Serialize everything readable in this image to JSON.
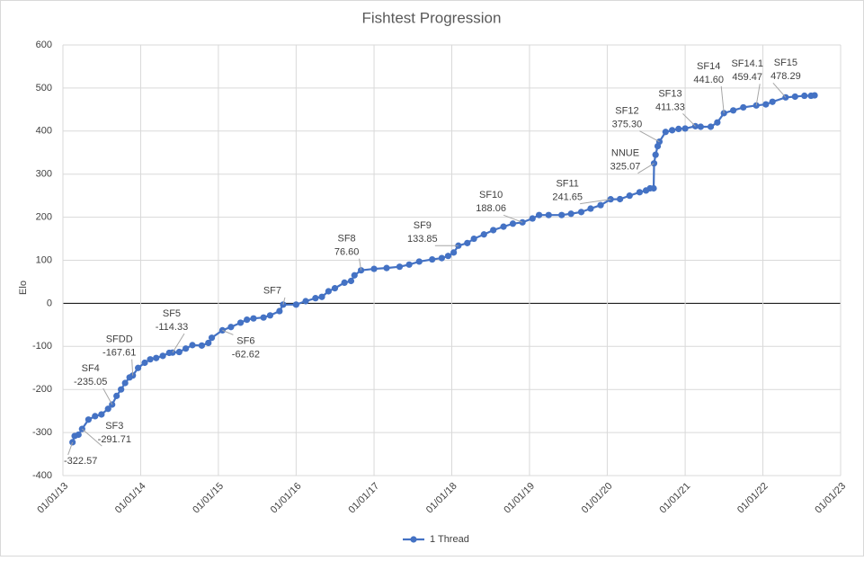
{
  "chart_data": {
    "type": "line",
    "title": "Fishtest Progression",
    "y_label": "Elo",
    "xlim": [
      "2013-01-01",
      "2023-01-01"
    ],
    "xticks": [
      {
        "value": "2013-01-01",
        "label": "01/01/13"
      },
      {
        "value": "2014-01-01",
        "label": "01/01/14"
      },
      {
        "value": "2015-01-01",
        "label": "01/01/15"
      },
      {
        "value": "2016-01-01",
        "label": "01/01/16"
      },
      {
        "value": "2017-01-01",
        "label": "01/01/17"
      },
      {
        "value": "2018-01-01",
        "label": "01/01/18"
      },
      {
        "value": "2019-01-01",
        "label": "01/01/19"
      },
      {
        "value": "2020-01-01",
        "label": "01/01/20"
      },
      {
        "value": "2021-01-01",
        "label": "01/01/21"
      },
      {
        "value": "2022-01-01",
        "label": "01/01/22"
      },
      {
        "value": "2023-01-01",
        "label": "01/01/23"
      }
    ],
    "ylim": [
      -400,
      600
    ],
    "yticks": [
      -400,
      -300,
      -200,
      -100,
      0,
      100,
      200,
      300,
      400,
      500,
      600
    ],
    "grid": true,
    "legend": "bottom",
    "x": [
      "2013-02-15",
      "2013-02-25",
      "2013-03-15",
      "2013-04-01",
      "2013-05-01",
      "2013-06-01",
      "2013-07-01",
      "2013-08-01",
      "2013-08-20",
      "2013-09-10",
      "2013-10-01",
      "2013-10-20",
      "2013-11-10",
      "2013-11-25",
      "2013-12-20",
      "2014-01-20",
      "2014-02-15",
      "2014-03-15",
      "2014-04-15",
      "2014-05-15",
      "2014-05-31",
      "2014-07-01",
      "2014-08-01",
      "2014-09-01",
      "2014-10-15",
      "2014-11-15",
      "2014-12-01",
      "2015-01-20",
      "2015-03-01",
      "2015-04-15",
      "2015-05-15",
      "2015-06-15",
      "2015-08-01",
      "2015-09-01",
      "2015-10-15",
      "2015-11-01",
      "2016-01-01",
      "2016-02-15",
      "2016-04-01",
      "2016-05-01",
      "2016-06-01",
      "2016-07-01",
      "2016-08-15",
      "2016-09-15",
      "2016-10-01",
      "2016-11-01",
      "2017-01-01",
      "2017-03-01",
      "2017-05-01",
      "2017-06-15",
      "2017-08-01",
      "2017-10-01",
      "2017-11-15",
      "2017-12-15",
      "2018-01-10",
      "2018-02-01",
      "2018-03-15",
      "2018-04-15",
      "2018-06-01",
      "2018-07-15",
      "2018-09-01",
      "2018-10-15",
      "2018-11-29",
      "2019-01-15",
      "2019-02-15",
      "2019-04-01",
      "2019-06-01",
      "2019-07-15",
      "2019-09-01",
      "2019-10-15",
      "2019-12-01",
      "2020-01-17",
      "2020-03-01",
      "2020-04-15",
      "2020-06-01",
      "2020-07-01",
      "2020-07-20",
      "2020-08-06",
      "2020-08-08",
      "2020-08-15",
      "2020-08-25",
      "2020-09-02",
      "2020-10-01",
      "2020-11-01",
      "2020-12-01",
      "2021-01-01",
      "2021-02-18",
      "2021-03-15",
      "2021-05-01",
      "2021-06-01",
      "2021-07-02",
      "2021-08-15",
      "2021-10-01",
      "2021-12-01",
      "2022-01-15",
      "2022-02-15",
      "2022-04-18",
      "2022-06-01",
      "2022-07-15",
      "2022-08-15",
      "2022-09-01"
    ],
    "series": [
      {
        "name": "1 Thread",
        "color": "#4472c4",
        "values": [
          -322.57,
          -308,
          -305,
          -291.71,
          -270,
          -262,
          -258,
          -245,
          -235.05,
          -215,
          -200,
          -185,
          -172,
          -167.61,
          -150,
          -138,
          -130,
          -127,
          -122,
          -115,
          -114.33,
          -113,
          -105,
          -97,
          -98,
          -92,
          -80,
          -62.62,
          -55,
          -45,
          -38,
          -35,
          -33,
          -28,
          -18,
          -3,
          -3,
          5,
          12,
          15,
          28,
          35,
          48,
          52,
          65,
          76.6,
          80,
          82,
          85,
          90,
          97,
          102,
          105,
          110,
          118,
          133.85,
          140,
          150,
          160,
          170,
          178,
          185,
          188.06,
          197,
          205,
          205,
          205,
          208,
          212,
          220,
          228,
          241.65,
          242,
          250,
          258,
          262,
          267,
          267,
          325.07,
          345,
          365,
          375.3,
          398,
          402,
          405,
          406,
          411.33,
          410,
          410,
          420,
          441.6,
          448,
          455,
          459.47,
          462,
          468,
          478.29,
          480,
          482,
          482,
          483
        ]
      }
    ],
    "annotations": [
      {
        "x": "2013-02-15",
        "value": -322.57,
        "label": "-322.57"
      },
      {
        "text": "SF3",
        "x": "2013-04-01",
        "value": -291.71,
        "label": "-291.71"
      },
      {
        "text": "SF4",
        "x": "2013-08-20",
        "value": -235.05,
        "label": "-235.05"
      },
      {
        "text": "SFDD",
        "x": "2013-11-25",
        "value": -167.61,
        "label": "-167.61"
      },
      {
        "text": "SF5",
        "x": "2014-05-31",
        "value": -114.33,
        "label": "-114.33"
      },
      {
        "text": "SF6",
        "x": "2015-01-20",
        "value": -62.62,
        "label": "-62.62"
      },
      {
        "text": "SF7",
        "x": "2015-11-01",
        "value": -3
      },
      {
        "text": "SF8",
        "x": "2016-11-01",
        "value": 76.6,
        "label": "76.60"
      },
      {
        "text": "SF9",
        "x": "2018-02-01",
        "value": 133.85,
        "label": "133.85"
      },
      {
        "text": "SF10",
        "x": "2018-11-29",
        "value": 188.06,
        "label": "188.06"
      },
      {
        "text": "SF11",
        "x": "2020-01-17",
        "value": 241.65,
        "label": "241.65"
      },
      {
        "text": "NNUE",
        "x": "2020-08-08",
        "value": 325.07,
        "label": "325.07"
      },
      {
        "text": "SF12",
        "x": "2020-09-02",
        "value": 375.3,
        "label": "375.30"
      },
      {
        "text": "SF13",
        "x": "2021-02-18",
        "value": 411.33,
        "label": "411.33"
      },
      {
        "text": "SF14",
        "x": "2021-07-02",
        "value": 441.6,
        "label": "441.60"
      },
      {
        "text": "SF14.1",
        "x": "2021-12-01",
        "value": 459.47,
        "label": "459.47"
      },
      {
        "text": "SF15",
        "x": "2022-04-18",
        "value": 478.29,
        "label": "478.29"
      }
    ]
  }
}
